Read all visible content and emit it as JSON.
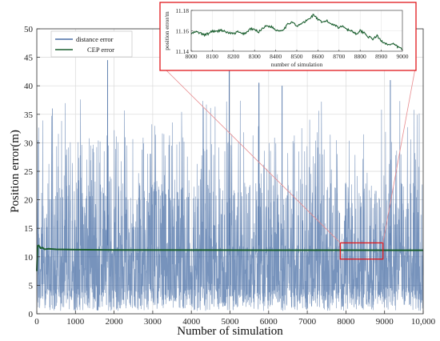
{
  "chart_data": [
    {
      "type": "line",
      "xlabel": "Number of simulation",
      "ylabel": "Position error(m)",
      "xlim": [
        0,
        10000
      ],
      "ylim": [
        0,
        50
      ],
      "x_ticks": [
        0,
        1000,
        2000,
        3000,
        4000,
        5000,
        6000,
        7000,
        8000,
        9000,
        10000
      ],
      "x_tick_labels": [
        "0",
        "1000",
        "2000",
        "3000",
        "4000",
        "5000",
        "6000",
        "7000",
        "8000",
        "9000",
        "10,000"
      ],
      "y_ticks": [
        0,
        5,
        10,
        15,
        20,
        25,
        30,
        35,
        40,
        45,
        50
      ],
      "grid": true,
      "legend_position": "top-left",
      "series": [
        {
          "name": "distance error",
          "color": "#4a6fa5",
          "description_values": {
            "num_points": 10000,
            "typical_range": [
              1,
              25
            ],
            "peaks": [
              {
                "x": 1830,
                "y": 44.5
              },
              {
                "x": 4980,
                "y": 43
              },
              {
                "x": 9150,
                "y": 41
              },
              {
                "x": 5750,
                "y": 40.5
              },
              {
                "x": 6350,
                "y": 40
              }
            ]
          }
        },
        {
          "name": "CEP error",
          "color": "#1a5e2e",
          "x": [
            0,
            20,
            50,
            100,
            150,
            200,
            300,
            500,
            1000,
            2000,
            4000,
            6000,
            8000,
            10000
          ],
          "values": [
            7.5,
            11.9,
            12.0,
            11.5,
            11.6,
            11.3,
            11.4,
            11.3,
            11.25,
            11.2,
            11.18,
            11.17,
            11.16,
            11.15
          ]
        }
      ],
      "highlight_region": {
        "x": [
          8000,
          9000
        ],
        "y": [
          10.3,
          12.3
        ],
        "color": "#e0161b"
      }
    },
    {
      "type": "line",
      "xlabel": "number of simulation",
      "ylabel": "position error/m",
      "xlim": [
        8000,
        9000
      ],
      "ylim": [
        11.14,
        11.18
      ],
      "x_ticks": [
        8000,
        8100,
        8200,
        8300,
        8400,
        8500,
        8600,
        8700,
        8800,
        8900,
        9000
      ],
      "y_ticks": [
        11.14,
        11.16,
        11.18
      ],
      "series": [
        {
          "name": "CEP error",
          "color": "#1a5e2e",
          "x": [
            8000,
            8020,
            8040,
            8060,
            8080,
            8100,
            8120,
            8140,
            8160,
            8180,
            8200,
            8220,
            8240,
            8260,
            8280,
            8300,
            8320,
            8340,
            8360,
            8380,
            8400,
            8420,
            8440,
            8460,
            8480,
            8500,
            8520,
            8540,
            8560,
            8580,
            8600,
            8620,
            8640,
            8660,
            8680,
            8700,
            8720,
            8740,
            8760,
            8780,
            8800,
            8820,
            8840,
            8860,
            8880,
            8900,
            8920,
            8940,
            8960,
            8980,
            9000
          ],
          "values": [
            11.157,
            11.159,
            11.158,
            11.156,
            11.157,
            11.16,
            11.159,
            11.161,
            11.159,
            11.158,
            11.157,
            11.159,
            11.157,
            11.158,
            11.162,
            11.161,
            11.159,
            11.163,
            11.165,
            11.164,
            11.161,
            11.16,
            11.162,
            11.167,
            11.169,
            11.164,
            11.167,
            11.169,
            11.172,
            11.176,
            11.171,
            11.168,
            11.17,
            11.167,
            11.166,
            11.163,
            11.165,
            11.161,
            11.16,
            11.157,
            11.16,
            11.158,
            11.154,
            11.152,
            11.155,
            11.15,
            11.148,
            11.146,
            11.147,
            11.144,
            11.142
          ]
        }
      ]
    }
  ]
}
